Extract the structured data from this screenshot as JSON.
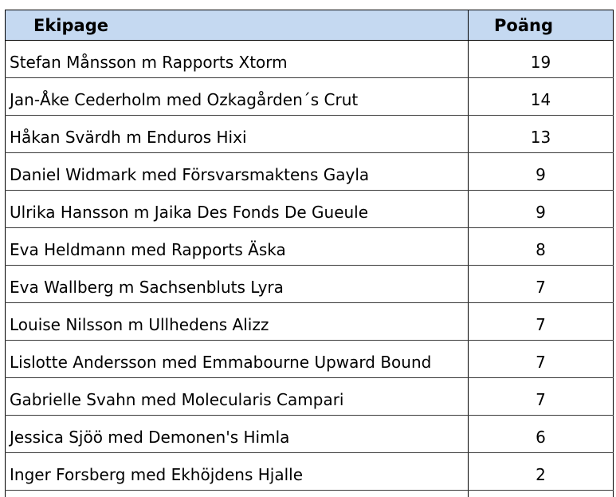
{
  "table": {
    "headers": {
      "name": "Ekipage",
      "points": "Poäng"
    },
    "rows": [
      {
        "name": "Stefan Månsson m Rapports Xtorm",
        "points": "19"
      },
      {
        "name": "Jan-Åke Cederholm med Ozkagården´s Crut",
        "points": "14"
      },
      {
        "name": "Håkan Svärdh m Enduros Hixi",
        "points": "13"
      },
      {
        "name": "Daniel Widmark med Försvarsmaktens Gayla",
        "points": "9"
      },
      {
        "name": "Ulrika Hansson m Jaika Des Fonds De Gueule",
        "points": "9"
      },
      {
        "name": "Eva Heldmann med Rapports Äska",
        "points": "8"
      },
      {
        "name": "Eva Wallberg m Sachsenbluts Lyra",
        "points": "7"
      },
      {
        "name": "Louise Nilsson m Ullhedens Alizz",
        "points": "7"
      },
      {
        "name": "Lislotte Andersson med Emmabourne Upward Bound",
        "points": "7"
      },
      {
        "name": "Gabrielle Svahn med Molecularis Campari",
        "points": "7"
      },
      {
        "name": "Jessica Sjöö med Demonen's Himla",
        "points": "6"
      },
      {
        "name": "Inger Forsberg med Ekhöjdens Hjalle",
        "points": "2"
      }
    ]
  }
}
